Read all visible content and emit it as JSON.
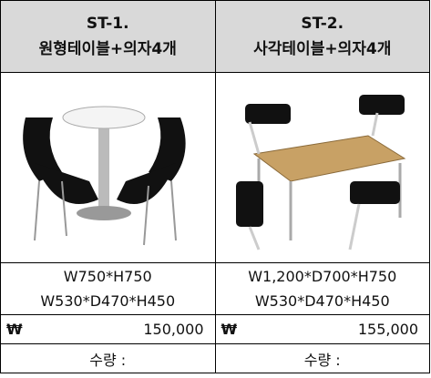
{
  "columns": [
    {
      "code": "ST-1.",
      "name": "원형테이블+의자4개",
      "dims": [
        "W750*H750",
        "W530*D470*H450"
      ],
      "currency": "₩",
      "price": "150,000",
      "qty": "수량 :"
    },
    {
      "code": "ST-2.",
      "name": "사각테이블+의자4개",
      "dims": [
        "W1,200*D700*H750",
        "W530*D470*H450"
      ],
      "currency": "₩",
      "price": "155,000",
      "qty": "수량 :"
    }
  ]
}
